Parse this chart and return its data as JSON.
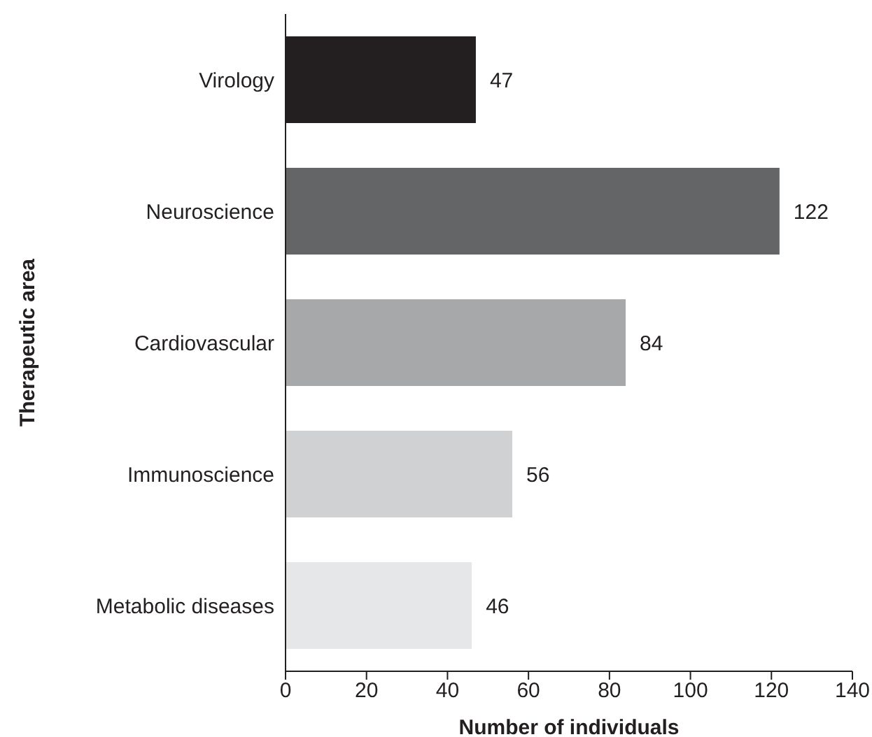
{
  "chart_data": {
    "type": "bar",
    "orientation": "horizontal",
    "xlabel": "Number of individuals",
    "ylabel": "Therapeutic area",
    "categories": [
      "Virology",
      "Neuroscience",
      "Cardiovascular",
      "Immunoscience",
      "Metabolic diseases"
    ],
    "values": [
      47,
      122,
      84,
      56,
      46
    ],
    "colors": [
      "#231f20",
      "#646567",
      "#a7a8aa",
      "#d0d1d3",
      "#e6e7e8"
    ],
    "xlim": [
      0,
      140
    ],
    "xticks": [
      0,
      20,
      40,
      60,
      80,
      100,
      120,
      140
    ],
    "data_labels": true,
    "grid": false
  }
}
